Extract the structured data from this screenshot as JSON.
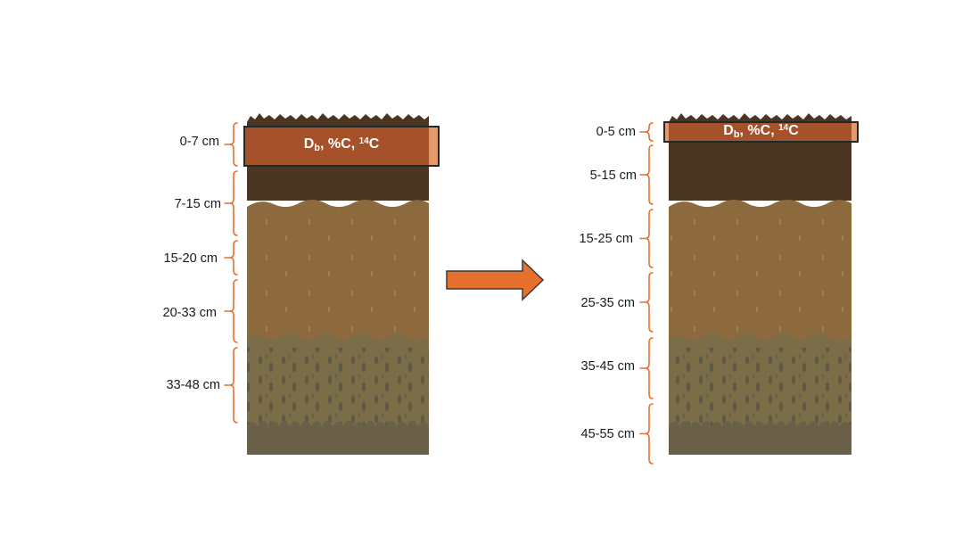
{
  "colors": {
    "bracket": "#e8702e",
    "arrow": "#e8702e",
    "arrow_border": "#3a3a3a",
    "topsoil_dark": "#4a3520",
    "subsoil_brown": "#8d6a3e",
    "lower_layer": "#7c6d49",
    "base_rock": "#6a6049",
    "sampled_band": "#a5522a",
    "band_outline": "#1e2a30"
  },
  "left_profile": {
    "sample_label": {
      "main": "D",
      "sub": "b",
      "rest": ", %C, ",
      "sup": "14",
      "tail": "C"
    },
    "depths": [
      "0-7 cm",
      "7-15 cm",
      "15-20 cm",
      "20-33 cm",
      "33-48 cm"
    ]
  },
  "right_profile": {
    "sample_label": {
      "main": "D",
      "sub": "b",
      "rest": ", %C, ",
      "sup": "14",
      "tail": "C"
    },
    "depths": [
      "0-5 cm",
      "5-15 cm",
      "15-25 cm",
      "25-35 cm",
      "35-45 cm",
      "45-55 cm"
    ]
  },
  "transition_arrow": {
    "icon": "right-arrow-icon",
    "direction": "right"
  }
}
